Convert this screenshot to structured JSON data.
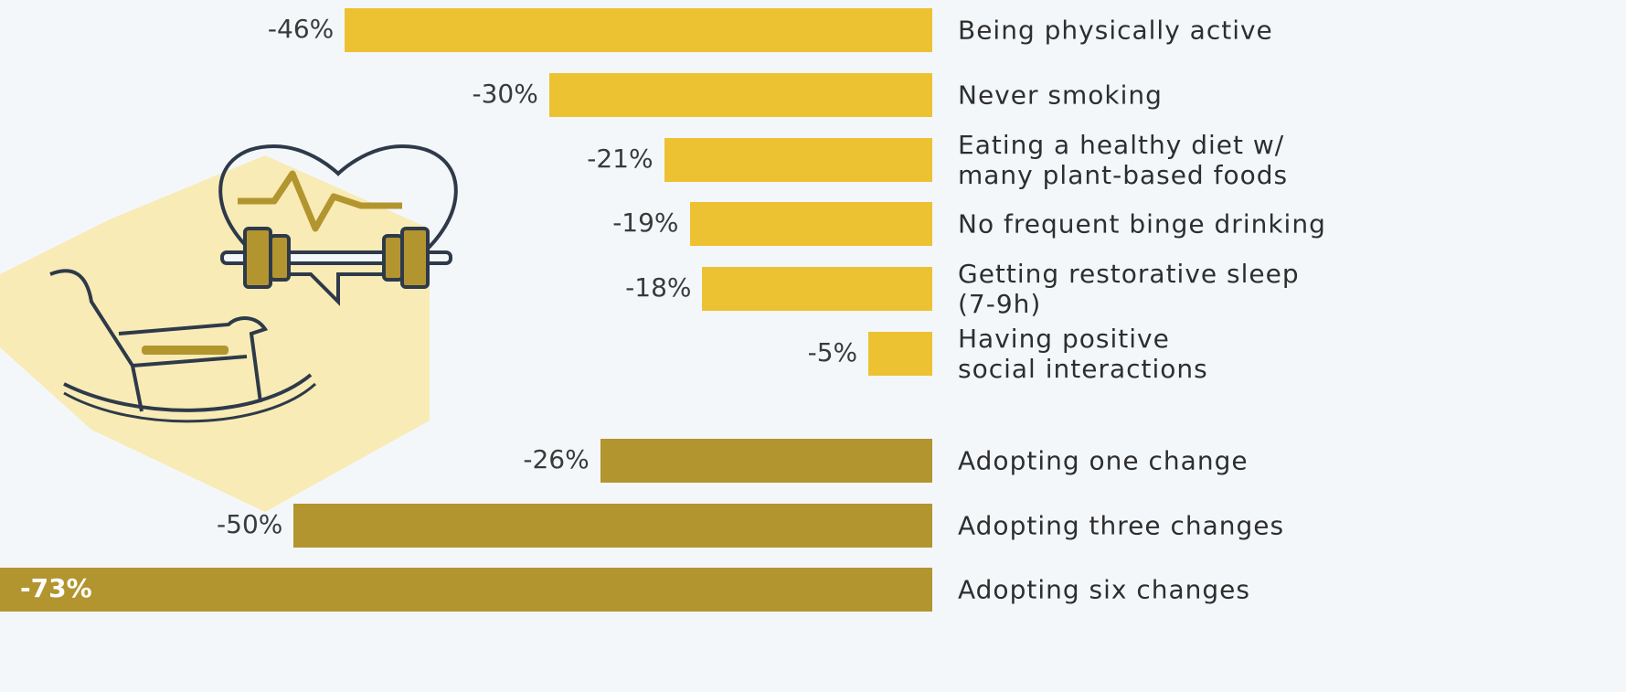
{
  "chart_data": {
    "type": "bar",
    "orientation": "horizontal",
    "categories": [
      "Being physically active",
      "Never smoking",
      "Eating a healthy diet w/\nmany plant-based foods",
      "No frequent binge drinking",
      "Getting restorative sleep\n(7-9h)",
      "Having positive\nsocial interactions",
      "Adopting one change",
      "Adopting three changes",
      "Adopting six changes"
    ],
    "values": [
      -46,
      -30,
      -21,
      -19,
      -18,
      -5,
      -26,
      -50,
      -73
    ],
    "value_labels": [
      "-46%",
      "-30%",
      "-21%",
      "-19%",
      "-18%",
      "-5%",
      "-26%",
      "-50%",
      "-73%"
    ],
    "colors": [
      "#ecc232",
      "#ecc232",
      "#ecc232",
      "#ecc232",
      "#ecc232",
      "#ecc232",
      "#b3952f",
      "#b3952f",
      "#b3952f"
    ],
    "xlim": [
      -73,
      0
    ]
  }
}
